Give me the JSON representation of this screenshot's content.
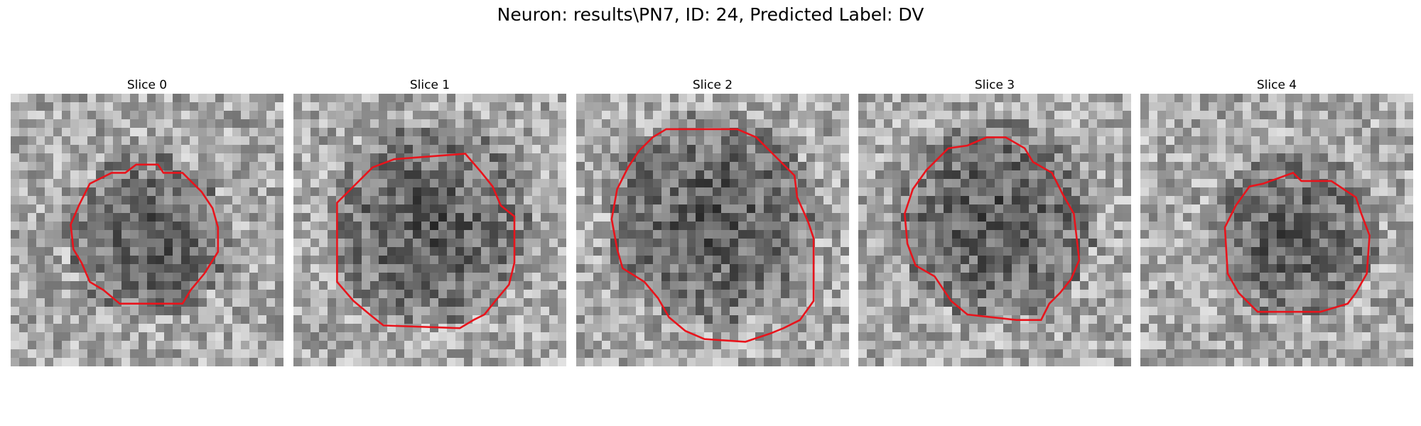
{
  "figure": {
    "title": "Neuron: results\\PN7, ID: 24, Predicted Label: DV"
  },
  "contour_color": "#e8141c",
  "panels": [
    {
      "title": "Slice 0",
      "seed": 11,
      "dark_center": [
        0.5,
        0.52
      ],
      "dark_radius": 0.24,
      "contour": [
        [
          0.46,
          0.26
        ],
        [
          0.54,
          0.26
        ],
        [
          0.56,
          0.29
        ],
        [
          0.63,
          0.29
        ],
        [
          0.7,
          0.36
        ],
        [
          0.74,
          0.42
        ],
        [
          0.76,
          0.49
        ],
        [
          0.76,
          0.58
        ],
        [
          0.71,
          0.66
        ],
        [
          0.66,
          0.72
        ],
        [
          0.63,
          0.77
        ],
        [
          0.4,
          0.77
        ],
        [
          0.34,
          0.72
        ],
        [
          0.29,
          0.69
        ],
        [
          0.26,
          0.62
        ],
        [
          0.23,
          0.57
        ],
        [
          0.22,
          0.48
        ],
        [
          0.25,
          0.41
        ],
        [
          0.29,
          0.33
        ],
        [
          0.37,
          0.29
        ],
        [
          0.42,
          0.29
        ]
      ]
    },
    {
      "title": "Slice 1",
      "seed": 23,
      "dark_center": [
        0.5,
        0.48
      ],
      "dark_radius": 0.31,
      "contour": [
        [
          0.37,
          0.24
        ],
        [
          0.63,
          0.22
        ],
        [
          0.69,
          0.29
        ],
        [
          0.73,
          0.34
        ],
        [
          0.76,
          0.41
        ],
        [
          0.81,
          0.45
        ],
        [
          0.81,
          0.62
        ],
        [
          0.79,
          0.7
        ],
        [
          0.74,
          0.76
        ],
        [
          0.7,
          0.81
        ],
        [
          0.66,
          0.83
        ],
        [
          0.61,
          0.86
        ],
        [
          0.33,
          0.85
        ],
        [
          0.28,
          0.81
        ],
        [
          0.22,
          0.76
        ],
        [
          0.16,
          0.69
        ],
        [
          0.16,
          0.4
        ],
        [
          0.22,
          0.34
        ],
        [
          0.29,
          0.27
        ]
      ]
    },
    {
      "title": "Slice 2",
      "seed": 37,
      "dark_center": [
        0.5,
        0.46
      ],
      "dark_radius": 0.33,
      "contour": [
        [
          0.33,
          0.13
        ],
        [
          0.59,
          0.13
        ],
        [
          0.66,
          0.16
        ],
        [
          0.72,
          0.22
        ],
        [
          0.8,
          0.3
        ],
        [
          0.81,
          0.38
        ],
        [
          0.85,
          0.47
        ],
        [
          0.87,
          0.53
        ],
        [
          0.87,
          0.76
        ],
        [
          0.82,
          0.83
        ],
        [
          0.76,
          0.86
        ],
        [
          0.71,
          0.88
        ],
        [
          0.62,
          0.91
        ],
        [
          0.47,
          0.9
        ],
        [
          0.4,
          0.87
        ],
        [
          0.34,
          0.82
        ],
        [
          0.3,
          0.75
        ],
        [
          0.25,
          0.69
        ],
        [
          0.17,
          0.64
        ],
        [
          0.15,
          0.57
        ],
        [
          0.13,
          0.46
        ],
        [
          0.15,
          0.35
        ],
        [
          0.19,
          0.27
        ],
        [
          0.23,
          0.21
        ],
        [
          0.28,
          0.16
        ]
      ]
    },
    {
      "title": "Slice 3",
      "seed": 51,
      "dark_center": [
        0.5,
        0.46
      ],
      "dark_radius": 0.31,
      "contour": [
        [
          0.47,
          0.16
        ],
        [
          0.54,
          0.16
        ],
        [
          0.61,
          0.2
        ],
        [
          0.64,
          0.25
        ],
        [
          0.71,
          0.29
        ],
        [
          0.75,
          0.37
        ],
        [
          0.79,
          0.44
        ],
        [
          0.81,
          0.61
        ],
        [
          0.78,
          0.68
        ],
        [
          0.74,
          0.73
        ],
        [
          0.7,
          0.77
        ],
        [
          0.67,
          0.83
        ],
        [
          0.58,
          0.83
        ],
        [
          0.4,
          0.81
        ],
        [
          0.34,
          0.76
        ],
        [
          0.28,
          0.67
        ],
        [
          0.21,
          0.63
        ],
        [
          0.18,
          0.55
        ],
        [
          0.17,
          0.44
        ],
        [
          0.2,
          0.35
        ],
        [
          0.25,
          0.28
        ],
        [
          0.33,
          0.2
        ],
        [
          0.4,
          0.19
        ]
      ]
    },
    {
      "title": "Slice 4",
      "seed": 67,
      "dark_center": [
        0.57,
        0.52
      ],
      "dark_radius": 0.25,
      "contour": [
        [
          0.45,
          0.33
        ],
        [
          0.56,
          0.29
        ],
        [
          0.59,
          0.32
        ],
        [
          0.7,
          0.32
        ],
        [
          0.79,
          0.38
        ],
        [
          0.81,
          0.44
        ],
        [
          0.84,
          0.52
        ],
        [
          0.83,
          0.66
        ],
        [
          0.79,
          0.73
        ],
        [
          0.76,
          0.77
        ],
        [
          0.66,
          0.8
        ],
        [
          0.43,
          0.8
        ],
        [
          0.36,
          0.73
        ],
        [
          0.32,
          0.66
        ],
        [
          0.31,
          0.49
        ],
        [
          0.35,
          0.41
        ],
        [
          0.4,
          0.34
        ]
      ]
    }
  ]
}
